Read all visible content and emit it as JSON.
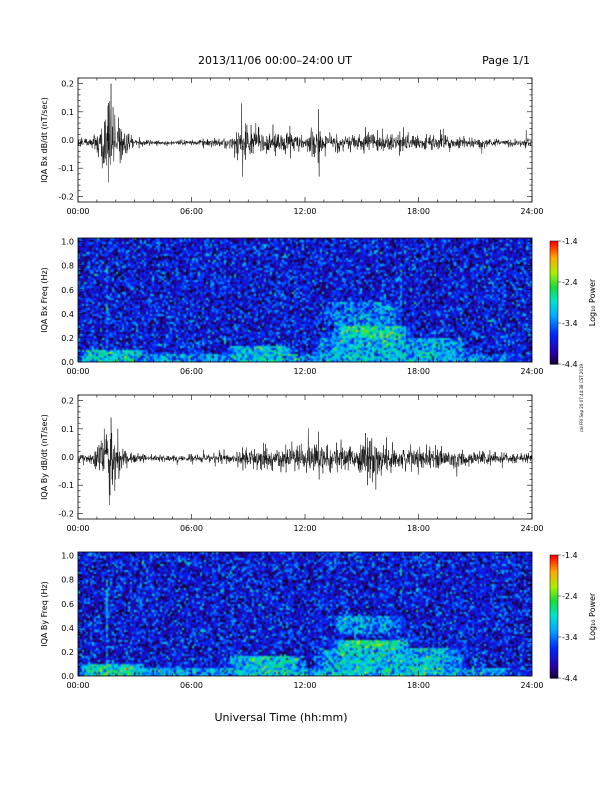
{
  "header": {
    "title": "2013/11/06  00:00–24:00 UT",
    "page": "Page 1/1"
  },
  "x_axis_title": "Universal Time (hh:mm)",
  "side_stamp": "cal FRI Sep 20 07:44:38 CST 2019",
  "chart_data": [
    {
      "type": "line",
      "ylabel": "IQA Bx dB/dt (nT/sec)",
      "x_range_hours": [
        0,
        24
      ],
      "xticks": [
        "00:00",
        "06:00",
        "12:00",
        "18:00",
        "24:00"
      ],
      "ylim": [
        -0.22,
        0.22
      ],
      "yticks": [
        "-0.2",
        "-0.1",
        "0.0",
        "0.1",
        "0.2"
      ],
      "grid": false,
      "baseline": -0.01,
      "amplitude_envelope": [
        [
          0,
          0.012
        ],
        [
          0.8,
          0.02
        ],
        [
          1.2,
          0.06
        ],
        [
          1.5,
          0.1
        ],
        [
          1.7,
          0.16
        ],
        [
          2.0,
          0.06
        ],
        [
          2.5,
          0.035
        ],
        [
          3,
          0.015
        ],
        [
          4,
          0.008
        ],
        [
          5,
          0.007
        ],
        [
          6,
          0.008
        ],
        [
          7,
          0.012
        ],
        [
          8,
          0.018
        ],
        [
          8.5,
          0.04
        ],
        [
          9,
          0.06
        ],
        [
          9.5,
          0.04
        ],
        [
          10,
          0.035
        ],
        [
          11,
          0.03
        ],
        [
          11.5,
          0.035
        ],
        [
          12,
          0.02
        ],
        [
          12.5,
          0.05
        ],
        [
          13,
          0.03
        ],
        [
          14,
          0.025
        ],
        [
          15,
          0.03
        ],
        [
          16,
          0.025
        ],
        [
          17,
          0.025
        ],
        [
          18,
          0.022
        ],
        [
          19,
          0.025
        ],
        [
          20,
          0.02
        ],
        [
          21,
          0.015
        ],
        [
          22,
          0.015
        ],
        [
          23,
          0.012
        ],
        [
          24,
          0.012
        ]
      ],
      "spikes": [
        [
          1.75,
          0.2
        ],
        [
          1.6,
          -0.15
        ],
        [
          8.65,
          0.13
        ],
        [
          8.7,
          -0.13
        ],
        [
          12.7,
          0.11
        ],
        [
          12.75,
          -0.13
        ],
        [
          1.95,
          0.09
        ],
        [
          2.15,
          0.08
        ],
        [
          9.4,
          0.06
        ],
        [
          10.3,
          0.055
        ],
        [
          11.2,
          0.05
        ],
        [
          15.2,
          0.045
        ],
        [
          16.1,
          0.04
        ],
        [
          17.2,
          0.045
        ],
        [
          19.3,
          0.04
        ],
        [
          23.7,
          0.035
        ]
      ]
    },
    {
      "type": "heatmap",
      "ylabel": "IQA Bx Freq (Hz)",
      "x_range_hours": [
        0,
        24
      ],
      "xticks": [
        "00:00",
        "06:00",
        "12:00",
        "18:00",
        "24:00"
      ],
      "ylim": [
        0,
        1.03
      ],
      "yticks": [
        "0.0",
        "0.2",
        "0.4",
        "0.6",
        "0.8",
        "1.0"
      ],
      "colorbar": {
        "label": "Log₁₀ Power",
        "range": [
          -4.4,
          -1.4
        ],
        "ticks": [
          "-1.4",
          "-2.4",
          "-3.4",
          "-4.4"
        ]
      },
      "background_level": -3.85,
      "features": [
        {
          "t0": 0,
          "t1": 24,
          "f0": 0,
          "f1": 0.06,
          "level": -3.25
        },
        {
          "t0": 0,
          "t1": 3.5,
          "f0": 0,
          "f1": 0.09,
          "level": -2.9
        },
        {
          "t0": 7.8,
          "t1": 11.5,
          "f0": 0,
          "f1": 0.12,
          "level": -3.05
        },
        {
          "t0": 13.5,
          "t1": 17.5,
          "f0": 0.2,
          "f1": 0.3,
          "level": -2.75
        },
        {
          "t0": 13,
          "t1": 17,
          "f0": 0.3,
          "f1": 0.5,
          "level": -3.35
        },
        {
          "t0": 12.5,
          "t1": 20.5,
          "f0": 0,
          "f1": 0.2,
          "level": -3.1
        },
        {
          "t0": 1.5,
          "t1": 1.6,
          "f0": 0,
          "f1": 0.8,
          "level": -3.3
        },
        {
          "t0": 17,
          "t1": 17.08,
          "f0": 0,
          "f1": 0.9,
          "level": -3.2
        }
      ]
    },
    {
      "type": "line",
      "ylabel": "IQA By dB/dt (nT/sec)",
      "x_range_hours": [
        0,
        24
      ],
      "xticks": [
        "00:00",
        "06:00",
        "12:00",
        "18:00",
        "24:00"
      ],
      "ylim": [
        -0.22,
        0.22
      ],
      "yticks": [
        "-0.2",
        "-0.1",
        "0.0",
        "0.1",
        "0.2"
      ],
      "grid": false,
      "baseline": -0.005,
      "amplitude_envelope": [
        [
          0,
          0.015
        ],
        [
          0.8,
          0.025
        ],
        [
          1.2,
          0.06
        ],
        [
          1.5,
          0.09
        ],
        [
          1.7,
          0.12
        ],
        [
          2.0,
          0.06
        ],
        [
          2.5,
          0.03
        ],
        [
          3,
          0.015
        ],
        [
          4,
          0.01
        ],
        [
          5,
          0.01
        ],
        [
          6,
          0.012
        ],
        [
          7,
          0.015
        ],
        [
          8,
          0.018
        ],
        [
          9,
          0.03
        ],
        [
          10,
          0.03
        ],
        [
          11,
          0.035
        ],
        [
          12,
          0.04
        ],
        [
          12.6,
          0.05
        ],
        [
          13,
          0.035
        ],
        [
          14,
          0.04
        ],
        [
          15,
          0.05
        ],
        [
          16,
          0.06
        ],
        [
          16.5,
          0.04
        ],
        [
          17,
          0.03
        ],
        [
          18,
          0.035
        ],
        [
          19,
          0.03
        ],
        [
          20,
          0.03
        ],
        [
          21,
          0.025
        ],
        [
          22,
          0.02
        ],
        [
          23,
          0.015
        ],
        [
          24,
          0.015
        ]
      ],
      "spikes": [
        [
          1.75,
          0.14
        ],
        [
          1.65,
          -0.17
        ],
        [
          1.5,
          0.08
        ],
        [
          1.95,
          -0.12
        ],
        [
          2.1,
          0.1
        ],
        [
          12.7,
          0.09
        ],
        [
          12.75,
          -0.08
        ],
        [
          15.2,
          0.085
        ],
        [
          15.3,
          -0.1
        ],
        [
          16.3,
          0.07
        ],
        [
          9.8,
          0.05
        ],
        [
          11.3,
          0.055
        ]
      ]
    },
    {
      "type": "heatmap",
      "ylabel": "IQA By Freq (Hz)",
      "x_range_hours": [
        0,
        24
      ],
      "xticks": [
        "00:00",
        "06:00",
        "12:00",
        "18:00",
        "24:00"
      ],
      "ylim": [
        0,
        1.03
      ],
      "yticks": [
        "0.0",
        "0.2",
        "0.4",
        "0.6",
        "0.8",
        "1.0"
      ],
      "colorbar": {
        "label": "Log₁₀ Power",
        "range": [
          -4.4,
          -1.4
        ],
        "ticks": [
          "-1.4",
          "-2.4",
          "-3.4",
          "-4.4"
        ]
      },
      "background_level": -3.85,
      "features": [
        {
          "t0": 0,
          "t1": 24,
          "f0": 0,
          "f1": 0.06,
          "level": -3.2
        },
        {
          "t0": 0,
          "t1": 3.5,
          "f0": 0,
          "f1": 0.1,
          "level": -2.85
        },
        {
          "t0": 8,
          "t1": 12,
          "f0": 0,
          "f1": 0.16,
          "level": -2.95
        },
        {
          "t0": 13.5,
          "t1": 17.5,
          "f0": 0.22,
          "f1": 0.3,
          "level": -2.7
        },
        {
          "t0": 13.5,
          "t1": 17,
          "f0": 0.35,
          "f1": 0.5,
          "level": -3.25
        },
        {
          "t0": 12.5,
          "t1": 20.5,
          "f0": 0,
          "f1": 0.22,
          "level": -3.05
        },
        {
          "t0": 1.5,
          "t1": 1.6,
          "f0": 0,
          "f1": 0.8,
          "level": -3.3
        },
        {
          "t0": 17,
          "t1": 17.08,
          "f0": 0,
          "f1": 0.9,
          "level": -3.2
        }
      ]
    }
  ]
}
